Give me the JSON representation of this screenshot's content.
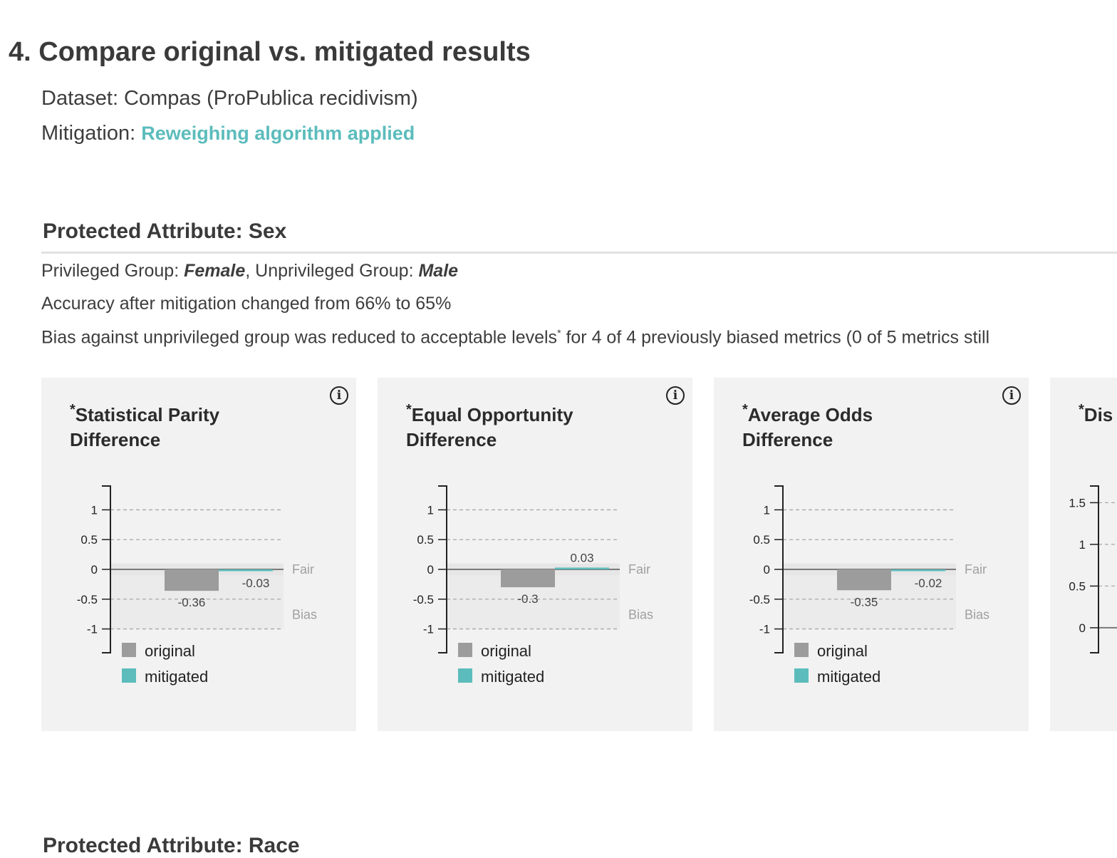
{
  "page": {
    "title": "4. Compare original vs. mitigated results",
    "dataset_label": "Dataset: Compas (ProPublica recidivism)",
    "mitigation_label": "Mitigation:",
    "mitigation_value": "Reweighing algorithm applied"
  },
  "section": {
    "title": "Protected Attribute: Sex",
    "privileged_label": "Privileged Group:",
    "privileged_value": "Female",
    "unprivileged_label": ", Unprivileged Group:",
    "unprivileged_value": "Male",
    "accuracy_text": "Accuracy after mitigation changed from 66% to 65%",
    "bias_text_a": "Bias against unprivileged group was reduced to acceptable levels",
    "bias_text_sup": "*",
    "bias_text_b": " for 4 of 4 previously biased metrics (0 of 5 metrics still"
  },
  "legend": {
    "original": "original",
    "mitigated": "mitigated"
  },
  "zone_labels": {
    "fair": "Fair",
    "bias": "Bias"
  },
  "colors": {
    "original": "#9c9c9c",
    "mitigated": "#5cbcbc",
    "accent": "#5cbcbc",
    "card_bg": "#f2f2f2"
  },
  "icons": {
    "info": "info-circle-icon"
  },
  "next_section": {
    "title": "Protected Attribute: Race"
  },
  "chart_data": [
    {
      "type": "bar",
      "title_star": "*",
      "title": "Statistical Parity Difference",
      "categories": [
        "original",
        "mitigated"
      ],
      "values": [
        -0.36,
        -0.03
      ],
      "data_labels": [
        "-0.36",
        "-0.03"
      ],
      "ticks": [
        1,
        0.5,
        0,
        -0.5,
        -1
      ],
      "tick_labels": [
        "1",
        "0.5",
        "0",
        "-0.5",
        "-1"
      ],
      "ylim": [
        -1.4,
        1.4
      ],
      "fair_band": [
        -0.1,
        0.1
      ],
      "legend": "bottom"
    },
    {
      "type": "bar",
      "title_star": "*",
      "title": "Equal Opportunity Difference",
      "categories": [
        "original",
        "mitigated"
      ],
      "values": [
        -0.3,
        0.03
      ],
      "data_labels": [
        "-0.3",
        "0.03"
      ],
      "ticks": [
        1,
        0.5,
        0,
        -0.5,
        -1
      ],
      "tick_labels": [
        "1",
        "0.5",
        "0",
        "-0.5",
        "-1"
      ],
      "ylim": [
        -1.4,
        1.4
      ],
      "fair_band": [
        -0.1,
        0.1
      ],
      "legend": "bottom"
    },
    {
      "type": "bar",
      "title_star": "*",
      "title": "Average Odds Difference",
      "categories": [
        "original",
        "mitigated"
      ],
      "values": [
        -0.35,
        -0.02
      ],
      "data_labels": [
        "-0.35",
        "-0.02"
      ],
      "ticks": [
        1,
        0.5,
        0,
        -0.5,
        -1
      ],
      "tick_labels": [
        "1",
        "0.5",
        "0",
        "-0.5",
        "-1"
      ],
      "ylim": [
        -1.4,
        1.4
      ],
      "fair_band": [
        -0.1,
        0.1
      ],
      "legend": "bottom"
    },
    {
      "type": "bar",
      "title_star": "*",
      "title": "Dis",
      "categories": [],
      "values": [],
      "data_labels": [],
      "ticks": [
        1.5,
        1,
        0.5,
        0
      ],
      "tick_labels": [
        "1.5",
        "1",
        "0.5",
        "0"
      ],
      "ylim": [
        -0.3,
        1.7
      ],
      "legend": "bottom"
    }
  ]
}
